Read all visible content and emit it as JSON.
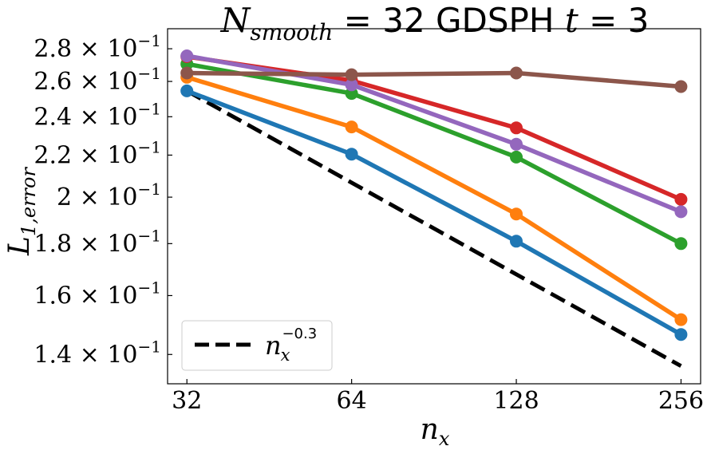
{
  "chart_data": {
    "type": "line",
    "title": {
      "symbol": "N",
      "subscript": "smooth",
      "middle": " = 32 GDSPH ",
      "time_symbol": "t",
      "time_rest": " = 3"
    },
    "xlabel": {
      "base": "n",
      "subscript": "x"
    },
    "ylabel": {
      "base": "L",
      "subscript": "1,error"
    },
    "x_scale": "log2",
    "y_scale": "log",
    "x": [
      32,
      64,
      128,
      256
    ],
    "x_tick_labels": [
      "32",
      "64",
      "128",
      "256"
    ],
    "xlim": [
      29.5,
      278
    ],
    "ylim": [
      0.131,
      0.293
    ],
    "y_ticks": [
      0.14,
      0.16,
      0.18,
      0.2,
      0.22,
      0.24,
      0.26,
      0.28
    ],
    "y_tick_labels": [
      {
        "mantissa": "1.4 × 10",
        "exponent": "−1"
      },
      {
        "mantissa": "1.6 × 10",
        "exponent": "−1"
      },
      {
        "mantissa": "1.8 × 10",
        "exponent": "−1"
      },
      {
        "mantissa": "2 × 10",
        "exponent": "−1"
      },
      {
        "mantissa": "2.2 × 10",
        "exponent": "−1"
      },
      {
        "mantissa": "2.4 × 10",
        "exponent": "−1"
      },
      {
        "mantissa": "2.6 × 10",
        "exponent": "−1"
      },
      {
        "mantissa": "2.8 × 10",
        "exponent": "−1"
      }
    ],
    "series": [
      {
        "name": "blue",
        "color": "#1f77b4",
        "values": [
          0.2545,
          0.2205,
          0.181,
          0.1465
        ]
      },
      {
        "name": "orange",
        "color": "#ff7f0e",
        "values": [
          0.2625,
          0.2345,
          0.1925,
          0.1515
        ]
      },
      {
        "name": "green",
        "color": "#2ca02c",
        "values": [
          0.2705,
          0.253,
          0.219,
          0.18
        ]
      },
      {
        "name": "red",
        "color": "#d62728",
        "values": [
          0.275,
          0.2605,
          0.234,
          0.199
        ]
      },
      {
        "name": "purple",
        "color": "#9467bd",
        "values": [
          0.2755,
          0.258,
          0.2255,
          0.1935
        ]
      },
      {
        "name": "brown",
        "color": "#8c564b",
        "values": [
          0.265,
          0.264,
          0.265,
          0.257
        ]
      }
    ],
    "reference_line": {
      "label_base": "n",
      "label_subscript": "x",
      "label_exponent": "−0.3",
      "exponent": -0.3,
      "color": "#000000",
      "style": "dashed",
      "values": [
        0.2545,
        0.2067,
        0.1679,
        0.1364
      ]
    },
    "legend": {
      "placement": "lower-left"
    }
  }
}
